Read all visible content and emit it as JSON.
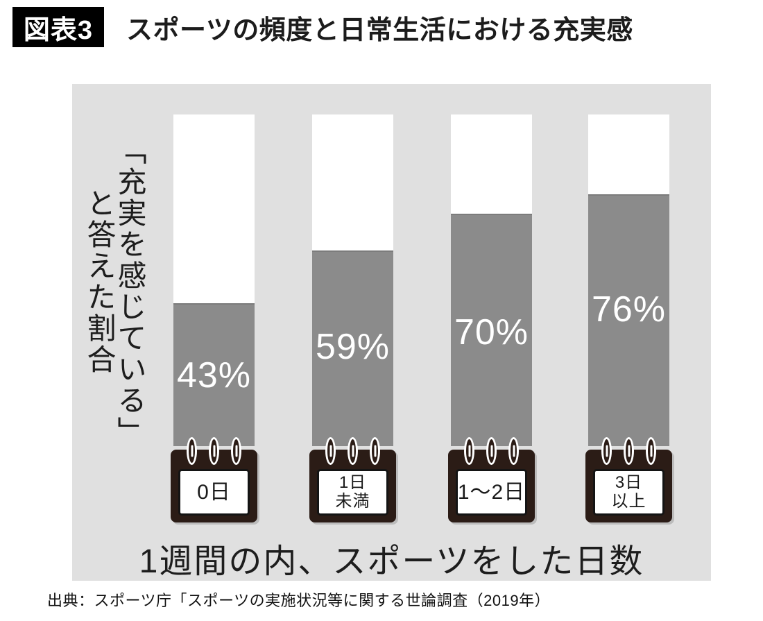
{
  "header": {
    "badge_label": "図表3",
    "title": "スポーツの頻度と日常生活における充実感"
  },
  "chart_data": {
    "type": "bar",
    "title": "スポーツの頻度と日常生活における充実感",
    "categories": [
      "0日",
      "1日未満",
      "1～2日",
      "3日以上"
    ],
    "values": [
      43,
      59,
      70,
      76
    ],
    "value_labels": [
      "43%",
      "59%",
      "70%",
      "76%"
    ],
    "xlabel": "1週間の内、スポーツをした日数",
    "ylabel": "「充実を感じている」と答えた割合",
    "ylim": [
      0,
      100
    ],
    "unit": "%",
    "grid": false,
    "legend": false,
    "bar_color": "#8b8b8b",
    "bar_track_color": "#ffffff",
    "plot_background": "#e0e0e0"
  },
  "ylabel_lines": {
    "line1": "「充実を感じている」",
    "line2": "と答えた割合"
  },
  "calendar_labels": [
    {
      "line1": "0日",
      "line2": ""
    },
    {
      "line1": "1日",
      "line2": "未満"
    },
    {
      "line1": "1～2日",
      "line2": ""
    },
    {
      "line1": "3日",
      "line2": "以上"
    }
  ],
  "source_note": "出典：スポーツ庁「スポーツの実施状況等に関する世論調査（2019年）"
}
